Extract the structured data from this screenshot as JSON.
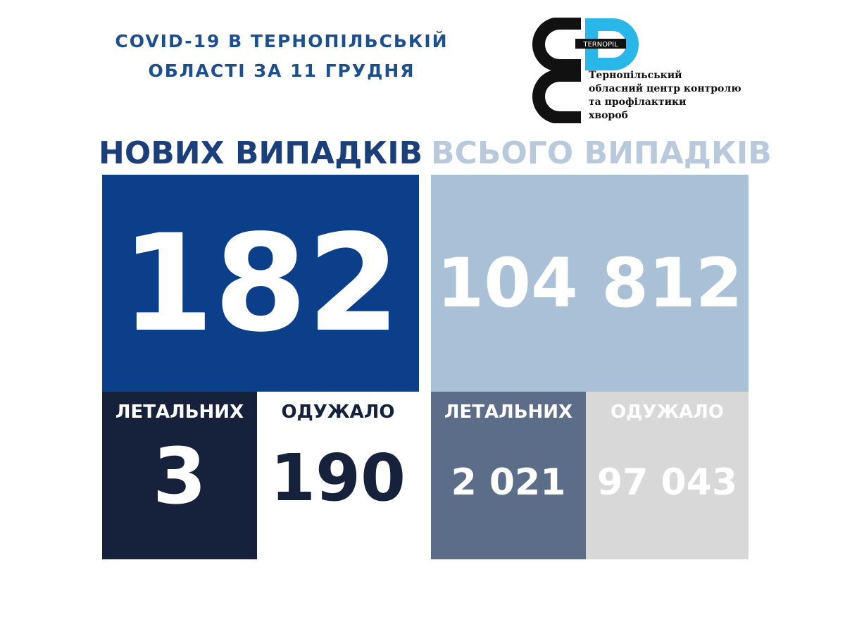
{
  "header": {
    "title_lines": [
      "COVID-19 В ТЕРНОПІЛЬСЬКІЙ",
      "ОБЛАСТІ ЗА 11 ГРУДНЯ"
    ]
  },
  "logo": {
    "badge": "TERNOPIL",
    "lines": [
      "Тернопільський",
      "обласний центр контролю",
      "та профілактики",
      "хвороб"
    ]
  },
  "new_cases": {
    "heading": "НОВИХ ВИПАДКІВ",
    "value": "182",
    "deaths_label": "ЛЕТАЛЬНИХ",
    "deaths": "3",
    "recovered_label": "ОДУЖАЛО",
    "recovered": "190"
  },
  "total_cases": {
    "heading": "ВСЬОГО ВИПАДКІВ",
    "value": "104 812",
    "deaths_label": "ЛЕТАЛЬНИХ",
    "deaths": "2 021",
    "recovered_label": "ОДУЖАЛО",
    "recovered": "97 043"
  }
}
